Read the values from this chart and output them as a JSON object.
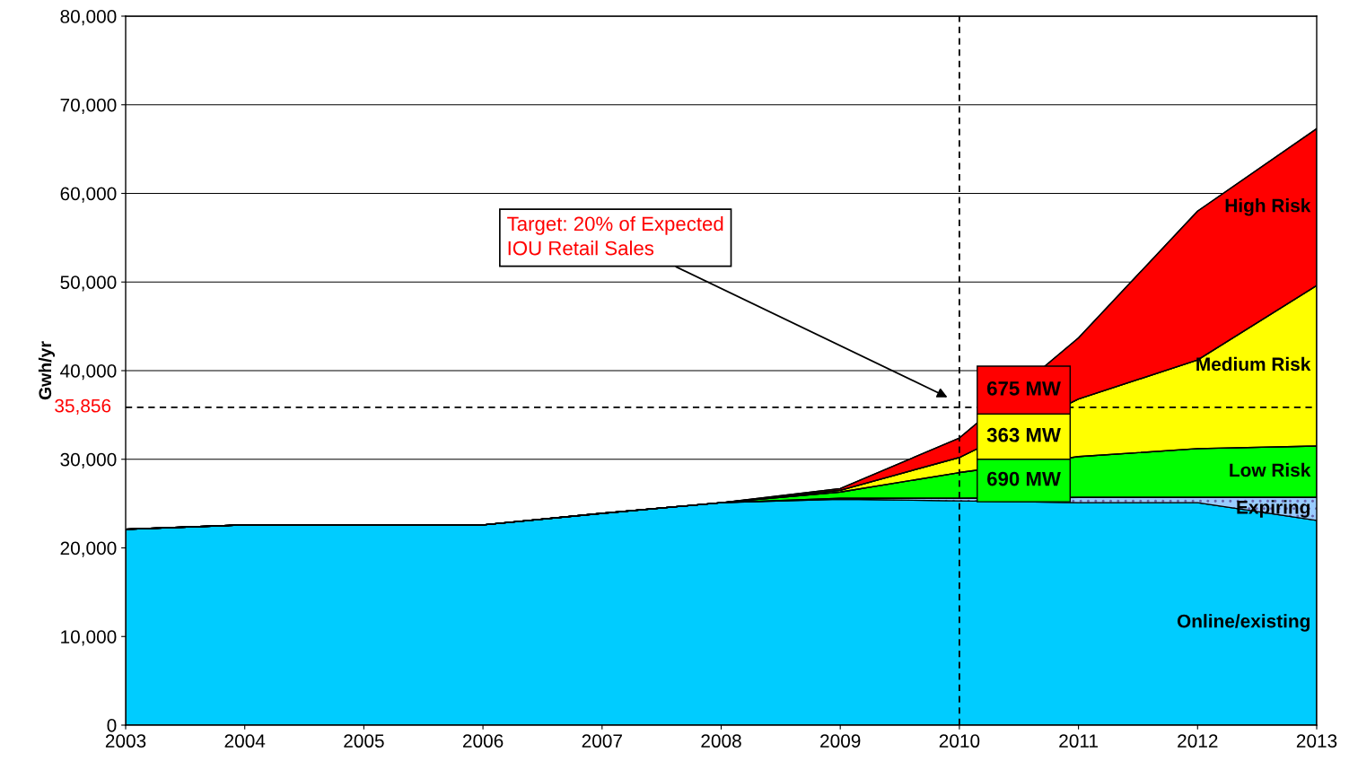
{
  "chart_data": {
    "type": "area",
    "stacked": true,
    "ylabel": "Gwh/yr",
    "x": [
      2003,
      2004,
      2005,
      2006,
      2007,
      2008,
      2009,
      2010,
      2011,
      2012,
      2013
    ],
    "series": [
      {
        "name": "Online/existing",
        "color": "#00ccff",
        "values": [
          22100,
          22600,
          22600,
          22600,
          23900,
          25100,
          25500,
          25300,
          25100,
          25100,
          23100
        ]
      },
      {
        "name": "Expiring",
        "color": "#99ccff",
        "values": [
          0,
          0,
          0,
          0,
          0,
          0,
          100,
          300,
          600,
          600,
          2600
        ]
      },
      {
        "name": "Low Risk",
        "color": "#00ff00",
        "values": [
          0,
          0,
          0,
          0,
          0,
          0,
          700,
          2900,
          4600,
          5500,
          5800
        ]
      },
      {
        "name": "Medium Risk",
        "color": "#ffff00",
        "values": [
          0,
          0,
          0,
          0,
          0,
          0,
          200,
          1700,
          6500,
          10000,
          18100
        ]
      },
      {
        "name": "High Risk",
        "color": "#ff0000",
        "values": [
          0,
          0,
          0,
          0,
          0,
          0,
          200,
          2200,
          6900,
          16800,
          17700
        ]
      }
    ],
    "xlim": [
      2003,
      2013
    ],
    "xticks": [
      2003,
      2004,
      2005,
      2006,
      2007,
      2008,
      2009,
      2010,
      2011,
      2012,
      2013
    ],
    "ylim": [
      0,
      80000
    ],
    "yticks": [
      {
        "value": 0,
        "label": "0"
      },
      {
        "value": 10000,
        "label": "10,000"
      },
      {
        "value": 20000,
        "label": "20,000"
      },
      {
        "value": 30000,
        "label": "30,000"
      },
      {
        "value": 40000,
        "label": "40,000"
      },
      {
        "value": 50000,
        "label": "50,000"
      },
      {
        "value": 60000,
        "label": "60,000"
      },
      {
        "value": 70000,
        "label": "70,000"
      },
      {
        "value": 80000,
        "label": "80,000"
      }
    ],
    "grid": "y",
    "legend": false,
    "ref_lines": [
      {
        "axis": "x",
        "value": 2010,
        "line_style": "dashed",
        "color": "#000000"
      },
      {
        "axis": "y",
        "value": 35856,
        "label": "35,856",
        "line_style": "dashed",
        "color": "#000000"
      }
    ],
    "annotations": [
      "Target: 20% of Expected\nIOU Retail Sales",
      "675 MW",
      "363 MW",
      "690 MW"
    ]
  }
}
